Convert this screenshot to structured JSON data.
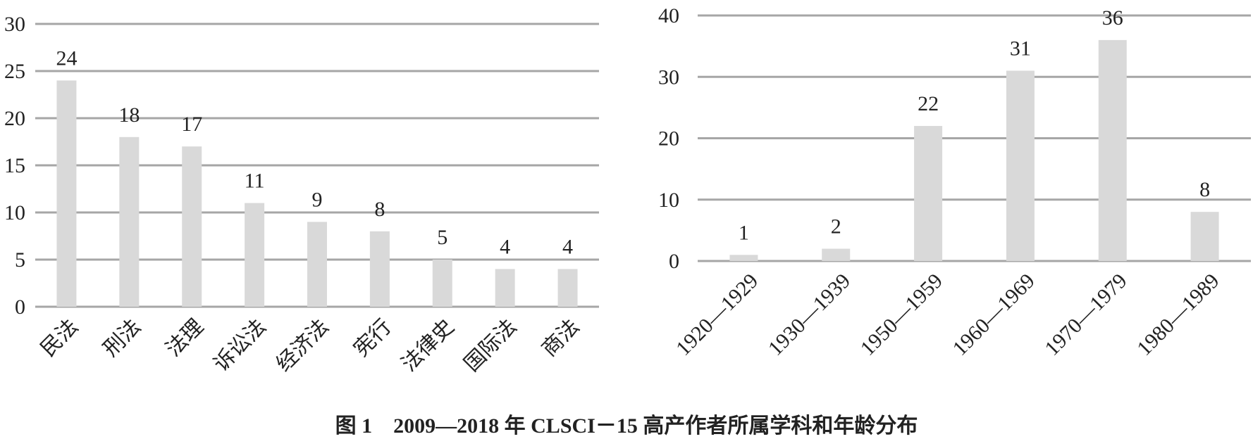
{
  "caption": "图 1    2009—2018 年 CLSCI－15 高产作者所属学科和年龄分布",
  "colors": {
    "bar": "#d9d9d9",
    "grid": "#a6a6a6",
    "text": "#222222"
  },
  "chart_data": [
    {
      "type": "bar",
      "title": "",
      "xlabel": "",
      "ylabel": "",
      "categories": [
        "民法",
        "刑法",
        "法理",
        "诉讼法",
        "经济法",
        "宪行",
        "法律史",
        "国际法",
        "商法"
      ],
      "values": [
        24,
        18,
        17,
        11,
        9,
        8,
        5,
        4,
        4
      ],
      "value_labels": [
        "24",
        "18",
        "17",
        "11",
        "9",
        "8",
        "5",
        "4",
        "4"
      ],
      "ylim": [
        0,
        30
      ],
      "yticks": [
        "0",
        "5",
        "10",
        "15",
        "20",
        "25",
        "30"
      ],
      "grid": true,
      "x_label_rotation": -45
    },
    {
      "type": "bar",
      "title": "",
      "xlabel": "",
      "ylabel": "",
      "categories": [
        "1920—1929",
        "1930—1939",
        "1950—1959",
        "1960—1969",
        "1970—1979",
        "1980—1989"
      ],
      "values": [
        1,
        2,
        22,
        31,
        36,
        8
      ],
      "value_labels": [
        "1",
        "2",
        "22",
        "31",
        "36",
        "8"
      ],
      "ylim": [
        0,
        40
      ],
      "yticks": [
        "0",
        "10",
        "20",
        "30",
        "40"
      ],
      "grid": true,
      "x_label_rotation": -45
    }
  ]
}
